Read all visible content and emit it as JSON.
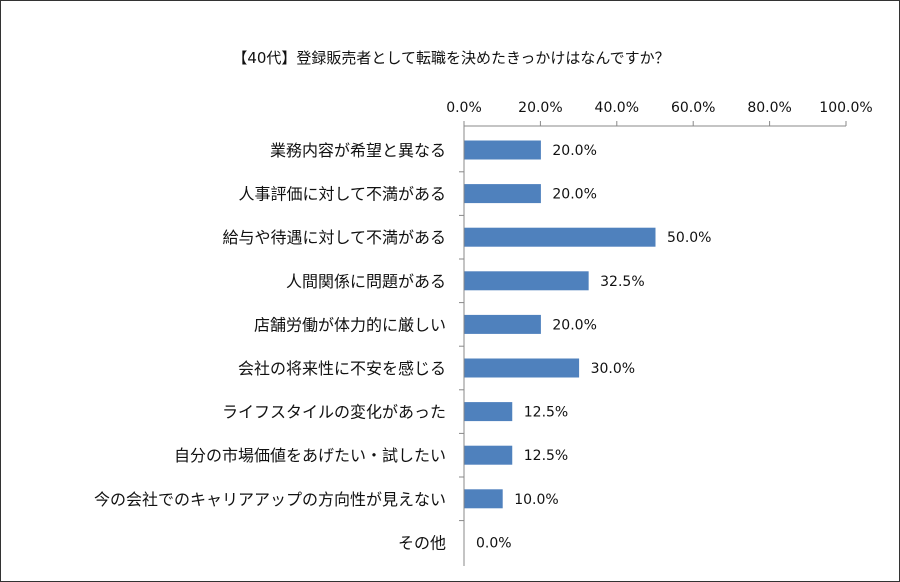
{
  "chart_data": {
    "type": "bar",
    "orientation": "horizontal",
    "title": "【40代】登録販売者として転職を決めたきっかけはなんですか？",
    "categories": [
      "業務内容が希望と異なる",
      "人事評価に対して不満がある",
      "給与や待遇に対して不満がある",
      "人間関係に問題がある",
      "店舗労働が体力的に厳しい",
      "会社の将来性に不安を感じる",
      "ライフスタイルの変化があった",
      "自分の市場価値をあげたい・試したい",
      "今の会社でのキャリアアップの方向性が見えない",
      "その他"
    ],
    "values": [
      20.0,
      20.0,
      50.0,
      32.5,
      20.0,
      30.0,
      12.5,
      12.5,
      10.0,
      0.0
    ],
    "data_labels": [
      "20.0%",
      "20.0%",
      "50.0%",
      "32.5%",
      "20.0%",
      "30.0%",
      "12.5%",
      "12.5%",
      "10.0%",
      "0.0%"
    ],
    "x_ticks": [
      0,
      20,
      40,
      60,
      80,
      100
    ],
    "x_tick_labels": [
      "0.0%",
      "20.0%",
      "40.0%",
      "60.0%",
      "80.0%",
      "100.0%"
    ],
    "xlim": [
      0,
      100
    ],
    "axis_position": "top",
    "grid": false,
    "legend": "none",
    "bar_color": "#4f81bd",
    "axis_color": "#888888"
  }
}
